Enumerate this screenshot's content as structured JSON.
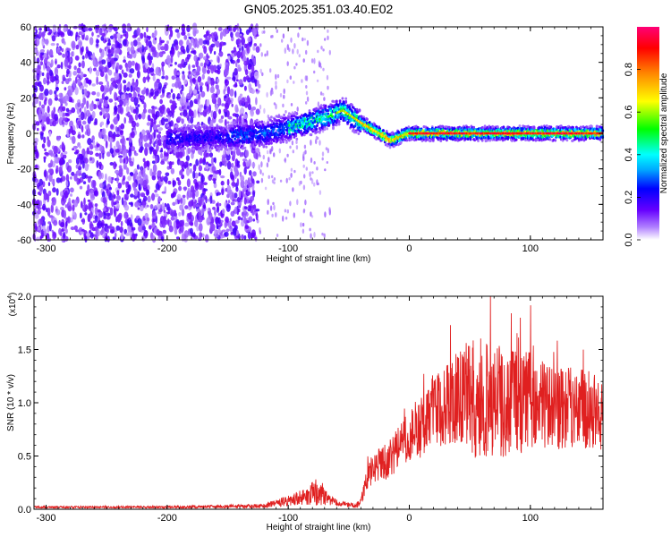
{
  "title": "GN05.2025.351.03.40.E02",
  "chart_data": [
    {
      "type": "heatmap",
      "xlabel": "Height of straight line (km)",
      "ylabel": "Frequency (Hz)",
      "xlim": [
        -310,
        160
      ],
      "ylim": [
        -60,
        60
      ],
      "x_ticks": [
        -300,
        -200,
        -100,
        0,
        100
      ],
      "y_ticks": [
        -60,
        -40,
        -20,
        0,
        20,
        40,
        60
      ],
      "colorbar": {
        "label": "Normalized spectral amplitude",
        "range": [
          0,
          1
        ],
        "ticks": [
          0.0,
          0.2,
          0.4,
          0.6,
          0.8
        ]
      },
      "ridge": {
        "description_points_x": [
          -190,
          -150,
          -120,
          -100,
          -80,
          -65,
          -55,
          -40,
          -25,
          -15,
          -5,
          0,
          50,
          100,
          160
        ],
        "frequency": [
          -3,
          -2,
          0,
          3,
          7,
          10,
          13,
          6,
          0,
          -4,
          -1,
          0,
          0,
          0,
          0
        ]
      }
    },
    {
      "type": "line",
      "xlabel": "Height of straight line (km)",
      "ylabel": "SNR (10 * v/v)",
      "y_multiplier": "(x10",
      "y_multiplier_exp": "4",
      "xlim": [
        -310,
        160
      ],
      "ylim": [
        0,
        2.0
      ],
      "x_ticks": [
        -300,
        -200,
        -100,
        0,
        100
      ],
      "y_ticks": [
        0.0,
        0.5,
        1.0,
        1.5,
        2.0
      ],
      "series": [
        {
          "color": "#e02020",
          "envelope_x": [
            -310,
            -200,
            -120,
            -100,
            -85,
            -75,
            -68,
            -60,
            -45,
            -40,
            -35,
            -30,
            -20,
            -10,
            0,
            10,
            20,
            30,
            40,
            50,
            60,
            70,
            80,
            90,
            100,
            110,
            120,
            130,
            140,
            150,
            160
          ],
          "envelope_mean": [
            0.02,
            0.02,
            0.03,
            0.08,
            0.12,
            0.18,
            0.1,
            0.06,
            0.03,
            0.06,
            0.3,
            0.38,
            0.45,
            0.55,
            0.7,
            0.78,
            0.9,
            1.0,
            1.05,
            1.05,
            1.05,
            1.02,
            1.0,
            1.0,
            1.02,
            0.98,
            0.95,
            0.95,
            0.95,
            0.92,
            0.9
          ],
          "envelope_spread": [
            0.01,
            0.01,
            0.02,
            0.05,
            0.08,
            0.15,
            0.06,
            0.03,
            0.02,
            0.04,
            0.12,
            0.15,
            0.18,
            0.2,
            0.25,
            0.3,
            0.35,
            0.4,
            0.45,
            0.55,
            0.6,
            0.55,
            0.5,
            0.5,
            0.45,
            0.42,
            0.4,
            0.4,
            0.38,
            0.35,
            0.35
          ]
        }
      ]
    }
  ]
}
